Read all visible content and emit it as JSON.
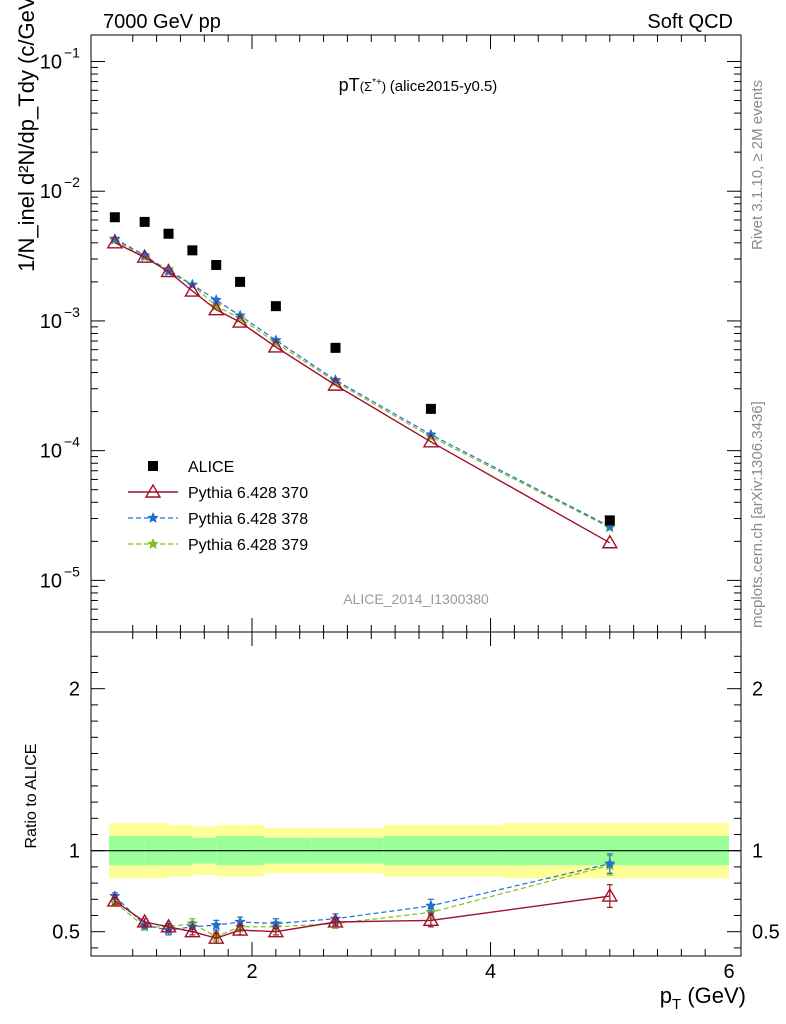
{
  "header": {
    "left": "7000 GeV pp",
    "right": "Soft QCD"
  },
  "side_text": {
    "rivet": "Rivet 3.1.10, ≥ 2M events",
    "source": "mcplots.cern.ch [arXiv:1306.3436]"
  },
  "watermark": "ALICE_2014_I1300380",
  "colors": {
    "alice": "#000000",
    "p370": "#a0102a",
    "p378": "#1f6fd1",
    "p379": "#7fbf1f",
    "band_inner": "#99ff99",
    "band_outer": "#ffff99"
  },
  "chart_data": [
    {
      "type": "scatter",
      "panel": "main",
      "title": "pT(Σ*+) (alice2015-y0.5)",
      "ylabel": "1/N_inel d²N/dp_Tdy (c/GeV)",
      "yscale": "log",
      "ylim": [
        4e-06,
        0.16
      ],
      "xlim": [
        0.65,
        6.1
      ],
      "y_ticks": [
        "10^-5",
        "10^-4",
        "10^-3",
        "10^-2",
        "10^-1"
      ],
      "legend_position": "bottom-left",
      "x": [
        0.85,
        1.1,
        1.3,
        1.5,
        1.7,
        1.9,
        2.2,
        2.7,
        3.5,
        5.0
      ],
      "series": [
        {
          "name": "ALICE",
          "style": "square-marker",
          "values": [
            0.0063,
            0.0058,
            0.0047,
            0.0035,
            0.0027,
            0.002,
            0.0013,
            0.00062,
            0.00021,
            2.9e-05
          ]
        },
        {
          "name": "Pythia 6.428 370",
          "style": "solid-line-open-triangle",
          "values": [
            0.004,
            0.0031,
            0.0024,
            0.0017,
            0.00122,
            0.00098,
            0.00063,
            0.00032,
            0.000117,
            1.95e-05
          ]
        },
        {
          "name": "Pythia 6.428 378",
          "style": "dashed-line-star",
          "values": [
            0.0043,
            0.0032,
            0.0024,
            0.0019,
            0.00145,
            0.0011,
            0.00071,
            0.00035,
            0.000133,
            2.6e-05
          ]
        },
        {
          "name": "Pythia 6.428 379",
          "style": "dashed-line-star",
          "values": [
            0.0042,
            0.0031,
            0.0025,
            0.0019,
            0.0013,
            0.00105,
            0.00068,
            0.00034,
            0.000128,
            2.55e-05
          ]
        }
      ]
    },
    {
      "type": "line",
      "panel": "ratio",
      "ylabel": "Ratio to ALICE",
      "xlabel": "p_T (GeV)",
      "xlim": [
        0.65,
        6.1
      ],
      "ylim": [
        0.35,
        2.35
      ],
      "x_ticks": [
        2,
        4,
        6
      ],
      "y_ticks": [
        0.5,
        1,
        2
      ],
      "x": [
        0.85,
        1.1,
        1.3,
        1.5,
        1.7,
        1.9,
        2.2,
        2.7,
        3.5,
        5.0
      ],
      "bands": {
        "x_edges": [
          0.7,
          1.0,
          1.2,
          1.4,
          1.6,
          1.8,
          2.0,
          2.4,
          3.0,
          4.0,
          6.0
        ],
        "inner_half_width": [
          0.09,
          0.09,
          0.09,
          0.08,
          0.09,
          0.09,
          0.08,
          0.08,
          0.09,
          0.09
        ],
        "outer_half_width": [
          0.17,
          0.17,
          0.16,
          0.15,
          0.16,
          0.16,
          0.14,
          0.14,
          0.16,
          0.17
        ]
      },
      "series": [
        {
          "name": "Pythia 6.428 370",
          "values": [
            0.69,
            0.56,
            0.53,
            0.5,
            0.46,
            0.51,
            0.5,
            0.56,
            0.57,
            0.72
          ],
          "errors": [
            0.02,
            0.02,
            0.02,
            0.02,
            0.03,
            0.03,
            0.02,
            0.02,
            0.04,
            0.07
          ]
        },
        {
          "name": "Pythia 6.428 378",
          "values": [
            0.72,
            0.54,
            0.51,
            0.53,
            0.54,
            0.56,
            0.55,
            0.58,
            0.66,
            0.92
          ],
          "errors": [
            0.02,
            0.02,
            0.03,
            0.03,
            0.03,
            0.03,
            0.03,
            0.03,
            0.04,
            0.06
          ]
        },
        {
          "name": "Pythia 6.428 379",
          "values": [
            0.68,
            0.53,
            0.53,
            0.55,
            0.47,
            0.53,
            0.53,
            0.55,
            0.62,
            0.91
          ],
          "errors": [
            0.02,
            0.02,
            0.02,
            0.03,
            0.03,
            0.03,
            0.03,
            0.03,
            0.04,
            0.06
          ]
        }
      ]
    }
  ]
}
